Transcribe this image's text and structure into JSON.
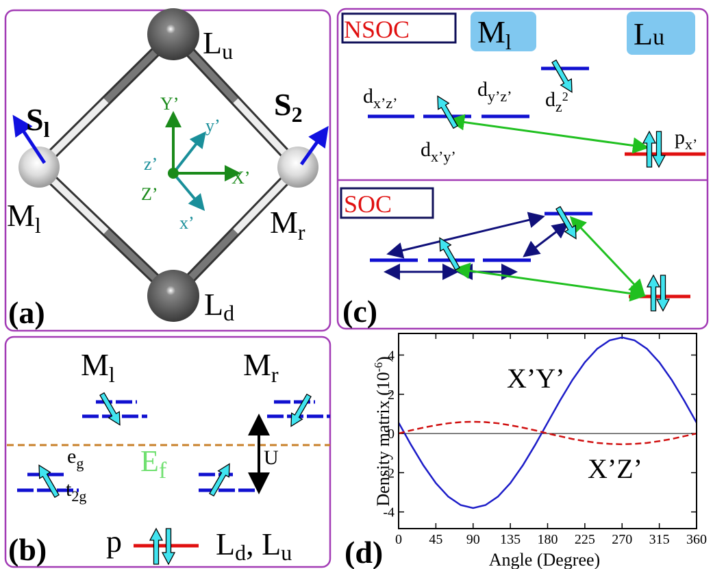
{
  "panel_a": {
    "label": "(a)",
    "L_u": {
      "main": "L",
      "sub": "u"
    },
    "L_d": {
      "main": "L",
      "sub": "d"
    },
    "M_l": {
      "main": "M",
      "sub": "l"
    },
    "M_r": {
      "main": "M",
      "sub": "r"
    },
    "S_1": {
      "main": "S",
      "sub": "l"
    },
    "S_2": {
      "main": "S",
      "sub": "2"
    },
    "axes": {
      "Y_big": "Y’",
      "y_small": "y’",
      "z_small": "z’",
      "Z_big": "Z’",
      "X_big": "X’",
      "x_small": "x’"
    }
  },
  "panel_b": {
    "label": "(b)",
    "M_l": {
      "main": "M",
      "sub": "l"
    },
    "M_r": {
      "main": "M",
      "sub": "r"
    },
    "e_g": {
      "main": "e",
      "sub": "g"
    },
    "t_2g": {
      "main": "t",
      "sub": "2g"
    },
    "E_f": {
      "main": "E",
      "sub": "f"
    },
    "U": "U",
    "p": "p",
    "ligands": {
      "L1": "L",
      "sub1": "d",
      "sep": ", ",
      "L2": "L",
      "sub2": "u"
    }
  },
  "panel_c": {
    "label": "(c)",
    "nsoc": "NSOC",
    "soc": "SOC",
    "M_l": {
      "main": "M",
      "sub": "l"
    },
    "L_u": {
      "main": "L",
      "sub": "u"
    },
    "d_xz": {
      "main": "d",
      "sub": "x’z’"
    },
    "d_yz": {
      "main": "d",
      "sub": "y’z’"
    },
    "d_z2": {
      "main": "d",
      "sub": "z",
      "sup": "2"
    },
    "d_xy": {
      "main": "d",
      "sub": "x’y’"
    },
    "p_x": {
      "main": "p",
      "sub": "x’"
    }
  },
  "chart_data": {
    "type": "line",
    "label": "(d)",
    "x_label": "Angle (Degree)",
    "y_label": {
      "text": "Density matrix (10",
      "sup": "-6",
      "close": ")"
    },
    "xlim": [
      0,
      360
    ],
    "xticks": [
      0,
      45,
      90,
      135,
      180,
      225,
      270,
      315,
      360
    ],
    "ylim": [
      -4.85,
      5.1
    ],
    "yticks": [
      -4,
      -2,
      0,
      2,
      4
    ],
    "x": [
      0,
      15,
      30,
      45,
      60,
      75,
      90,
      105,
      120,
      135,
      150,
      165,
      180,
      195,
      210,
      225,
      240,
      255,
      270,
      285,
      300,
      315,
      330,
      345,
      360
    ],
    "series": [
      {
        "name": "X’Y’",
        "color": "#1c1cc8",
        "dash": false,
        "values": [
          0.55,
          -0.58,
          -1.63,
          -2.53,
          -3.22,
          -3.65,
          -3.8,
          -3.65,
          -3.22,
          -2.53,
          -1.63,
          -0.58,
          0.55,
          1.68,
          2.73,
          3.63,
          4.32,
          4.75,
          4.9,
          4.75,
          4.32,
          3.63,
          2.73,
          1.68,
          0.55
        ]
      },
      {
        "name": "X’Z’",
        "color": "#d01010",
        "dash": true,
        "values": [
          0,
          0.16,
          0.3,
          0.42,
          0.52,
          0.58,
          0.6,
          0.58,
          0.52,
          0.42,
          0.3,
          0.16,
          0,
          -0.14,
          -0.28,
          -0.39,
          -0.48,
          -0.53,
          -0.55,
          -0.53,
          -0.48,
          -0.39,
          -0.28,
          -0.14,
          0
        ]
      }
    ]
  }
}
